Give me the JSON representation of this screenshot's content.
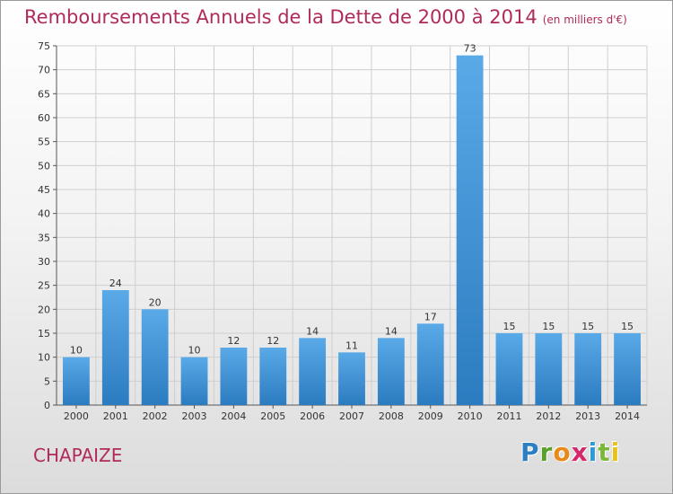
{
  "header": {
    "title": "Remboursements Annuels de la Dette de 2000 à 2014",
    "unit": "(en milliers d'€)"
  },
  "footer": {
    "commune": "CHAPAIZE",
    "logo_text": "Proxiti"
  },
  "colors": {
    "bar_top": "#5aaae8",
    "bar_bottom": "#2b7bc0",
    "title": "#b02a5b",
    "grid": "#cfcfcf"
  },
  "chart_data": {
    "type": "bar",
    "title": "Remboursements Annuels de la Dette de 2000 à 2014",
    "subtitle": "(en milliers d'€)",
    "xlabel": "",
    "ylabel": "",
    "categories": [
      "2000",
      "2001",
      "2002",
      "2003",
      "2004",
      "2005",
      "2006",
      "2007",
      "2008",
      "2009",
      "2010",
      "2011",
      "2012",
      "2013",
      "2014"
    ],
    "values": [
      10,
      24,
      20,
      10,
      12,
      12,
      14,
      11,
      14,
      17,
      73,
      15,
      15,
      15,
      15
    ],
    "yticks": [
      0,
      5,
      10,
      15,
      20,
      25,
      30,
      35,
      40,
      45,
      50,
      55,
      60,
      65,
      70,
      75
    ],
    "ylim": [
      0,
      75
    ],
    "grid": true,
    "legend": "none"
  }
}
